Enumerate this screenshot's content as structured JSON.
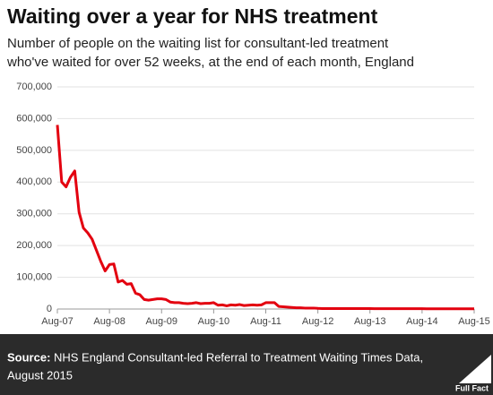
{
  "chart_data": {
    "type": "line",
    "title": "Waiting over a year for NHS treatment",
    "subtitle": [
      "Number of people on the waiting list for consultant-led treatment",
      "who've waited for over 52 weeks, at the end of each month, England"
    ],
    "categories": [
      "Aug-07",
      null,
      null,
      null,
      null,
      null,
      null,
      null,
      null,
      null,
      null,
      null,
      "Aug-08",
      null,
      null,
      null,
      null,
      null,
      null,
      null,
      null,
      null,
      null,
      null,
      "Aug-09",
      null,
      null,
      null,
      null,
      null,
      null,
      null,
      null,
      null,
      null,
      null,
      "Aug-10",
      null,
      null,
      null,
      null,
      null,
      null,
      null,
      null,
      null,
      null,
      null,
      "Aug-11",
      null,
      null,
      null,
      null,
      null,
      null,
      null,
      null,
      null,
      null,
      null,
      "Aug-12",
      null,
      null,
      null,
      null,
      null,
      null,
      null,
      null,
      null,
      null,
      null,
      "Aug-13",
      null,
      null,
      null,
      null,
      null,
      null,
      null,
      null,
      null,
      null,
      null,
      "Aug-14",
      null,
      null,
      null,
      null,
      null,
      null,
      null,
      null,
      null,
      null,
      null,
      "Aug-15"
    ],
    "values": [
      580000,
      400000,
      385000,
      415000,
      435000,
      305000,
      255000,
      240000,
      220000,
      185000,
      150000,
      120000,
      140000,
      142000,
      85000,
      90000,
      78000,
      80000,
      50000,
      45000,
      30000,
      28000,
      30000,
      32000,
      32000,
      30000,
      22000,
      20000,
      20000,
      18000,
      17000,
      18000,
      20000,
      17000,
      18000,
      18000,
      20000,
      12000,
      13000,
      10000,
      13000,
      12000,
      14000,
      11000,
      12000,
      13000,
      12000,
      13000,
      20000,
      20000,
      20000,
      8000,
      7000,
      6000,
      5000,
      4000,
      4000,
      3000,
      3000,
      3000,
      2000,
      1500,
      1500,
      1500,
      1500,
      1500,
      1500,
      1500,
      1500,
      1500,
      1500,
      1500,
      1500,
      1000,
      1000,
      1000,
      1000,
      1000,
      1000,
      1000,
      1000,
      1000,
      1000,
      1000,
      1000,
      700,
      700,
      700,
      700,
      700,
      700,
      700,
      700,
      700,
      700,
      700,
      700
    ],
    "color": "#e3000f",
    "ylim": [
      0,
      700000
    ],
    "yticks": [
      0,
      {
        "value": 100000,
        "label": "100,000"
      },
      {
        "value": 200000,
        "label": "200,000"
      },
      {
        "value": 300000,
        "label": "300,000"
      },
      {
        "value": 400000,
        "label": "400,000"
      },
      {
        "value": 500000,
        "label": "500,000"
      },
      {
        "value": 600000,
        "label": "600,000"
      },
      {
        "value": 700000,
        "label": "700,000"
      }
    ],
    "grid": true,
    "source_label": "Source:",
    "source": [
      "NHS England Consultant-led Referral to Treatment Waiting Times Data,",
      "August 2015"
    ],
    "logo": "Full Fact"
  }
}
